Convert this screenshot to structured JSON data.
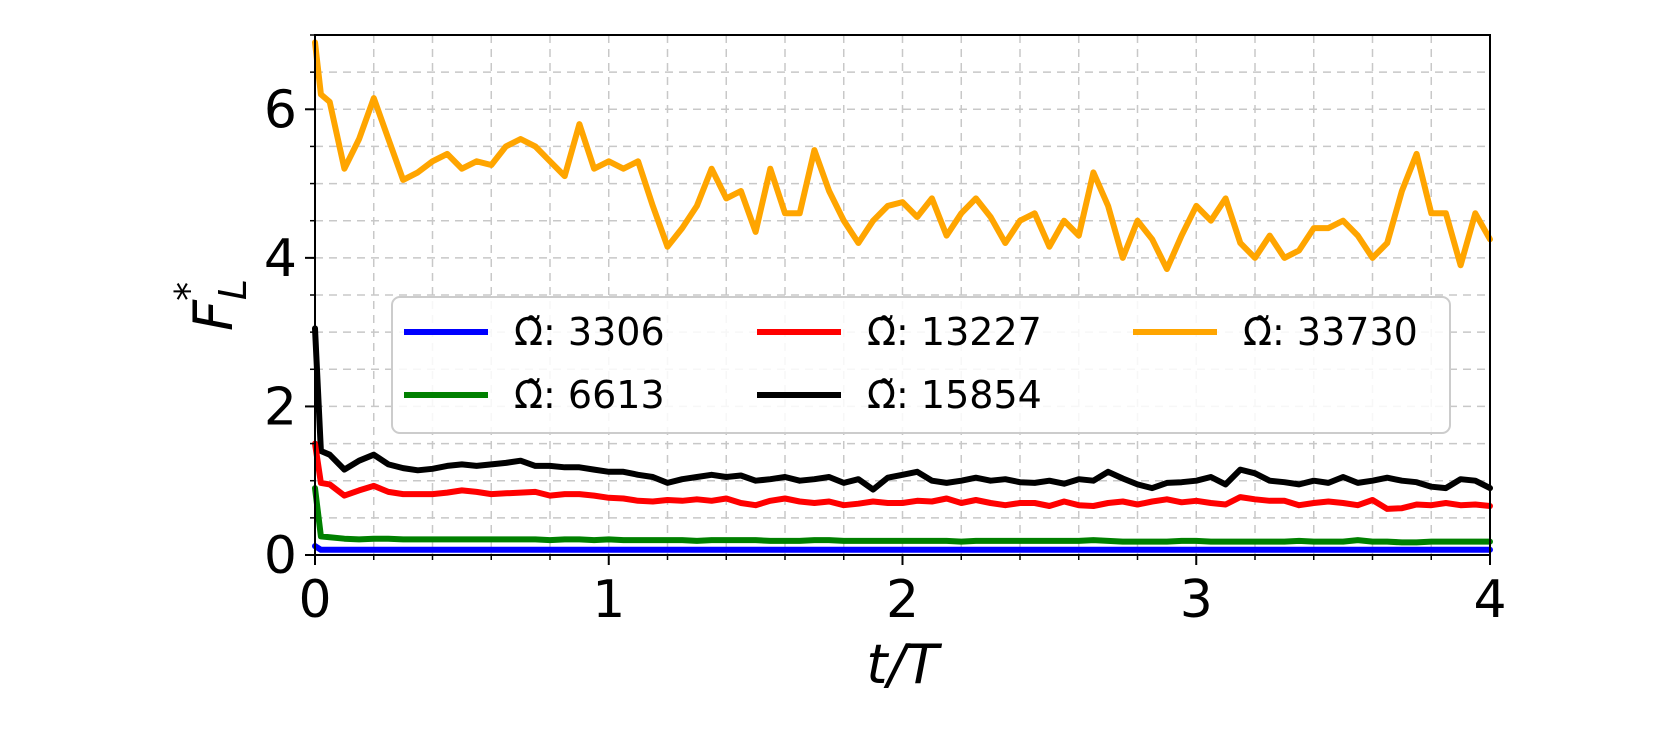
{
  "chart_data": {
    "type": "line",
    "xlabel": "t/T",
    "ylabel": "F*_L",
    "ylabel_main": "F",
    "ylabel_sup": "*",
    "ylabel_sub": "L",
    "xlim": [
      0,
      4
    ],
    "ylim": [
      0,
      7
    ],
    "x_ticks": [
      0,
      1,
      2,
      3,
      4
    ],
    "x_tick_labels": [
      "0",
      "1",
      "2",
      "3",
      "4"
    ],
    "y_ticks": [
      0,
      2,
      4,
      6
    ],
    "y_tick_labels": [
      "0",
      "2",
      "4",
      "6"
    ],
    "grid": true,
    "grid_minor": true,
    "legend_placement": "center",
    "legend_columns": 3,
    "x": [
      0.0,
      0.02,
      0.05,
      0.1,
      0.15,
      0.2,
      0.25,
      0.3,
      0.35,
      0.4,
      0.45,
      0.5,
      0.55,
      0.6,
      0.65,
      0.7,
      0.75,
      0.8,
      0.85,
      0.9,
      0.95,
      1.0,
      1.05,
      1.1,
      1.15,
      1.2,
      1.25,
      1.3,
      1.35,
      1.4,
      1.45,
      1.5,
      1.55,
      1.6,
      1.65,
      1.7,
      1.75,
      1.8,
      1.85,
      1.9,
      1.95,
      2.0,
      2.05,
      2.1,
      2.15,
      2.2,
      2.25,
      2.3,
      2.35,
      2.4,
      2.45,
      2.5,
      2.55,
      2.6,
      2.65,
      2.7,
      2.75,
      2.8,
      2.85,
      2.9,
      2.95,
      3.0,
      3.05,
      3.1,
      3.15,
      3.2,
      3.25,
      3.3,
      3.35,
      3.4,
      3.45,
      3.5,
      3.55,
      3.6,
      3.65,
      3.7,
      3.75,
      3.8,
      3.85,
      3.9,
      3.95,
      4.0
    ],
    "series": [
      {
        "name": "Ω̃: 3306",
        "color": "#0000ff",
        "values": [
          0.12,
          0.07,
          0.07,
          0.07,
          0.07,
          0.07,
          0.07,
          0.07,
          0.07,
          0.07,
          0.07,
          0.07,
          0.07,
          0.07,
          0.07,
          0.07,
          0.07,
          0.07,
          0.07,
          0.07,
          0.07,
          0.07,
          0.07,
          0.07,
          0.07,
          0.07,
          0.07,
          0.07,
          0.07,
          0.07,
          0.07,
          0.07,
          0.07,
          0.07,
          0.07,
          0.07,
          0.07,
          0.07,
          0.07,
          0.07,
          0.07,
          0.07,
          0.07,
          0.07,
          0.07,
          0.07,
          0.07,
          0.07,
          0.07,
          0.07,
          0.07,
          0.07,
          0.07,
          0.07,
          0.07,
          0.07,
          0.07,
          0.07,
          0.07,
          0.07,
          0.07,
          0.07,
          0.07,
          0.07,
          0.07,
          0.07,
          0.07,
          0.07,
          0.07,
          0.07,
          0.07,
          0.07,
          0.07,
          0.07,
          0.07,
          0.07,
          0.07,
          0.07,
          0.07,
          0.07,
          0.07,
          0.07
        ]
      },
      {
        "name": "Ω̃: 6613",
        "color": "#008000",
        "values": [
          0.9,
          0.25,
          0.24,
          0.22,
          0.21,
          0.22,
          0.22,
          0.21,
          0.21,
          0.21,
          0.21,
          0.21,
          0.21,
          0.21,
          0.21,
          0.21,
          0.21,
          0.2,
          0.21,
          0.21,
          0.2,
          0.21,
          0.2,
          0.2,
          0.2,
          0.2,
          0.2,
          0.19,
          0.2,
          0.2,
          0.2,
          0.2,
          0.19,
          0.19,
          0.19,
          0.2,
          0.2,
          0.19,
          0.19,
          0.19,
          0.19,
          0.19,
          0.19,
          0.19,
          0.19,
          0.18,
          0.19,
          0.19,
          0.19,
          0.19,
          0.19,
          0.19,
          0.19,
          0.19,
          0.2,
          0.19,
          0.18,
          0.18,
          0.18,
          0.18,
          0.19,
          0.19,
          0.18,
          0.18,
          0.18,
          0.18,
          0.18,
          0.18,
          0.19,
          0.18,
          0.18,
          0.18,
          0.2,
          0.18,
          0.18,
          0.17,
          0.17,
          0.18,
          0.18,
          0.18,
          0.18,
          0.18
        ]
      },
      {
        "name": "Ω̃: 13227",
        "color": "#ff0000",
        "values": [
          1.5,
          0.97,
          0.95,
          0.8,
          0.87,
          0.93,
          0.85,
          0.82,
          0.82,
          0.82,
          0.84,
          0.87,
          0.85,
          0.82,
          0.83,
          0.84,
          0.85,
          0.8,
          0.82,
          0.82,
          0.8,
          0.77,
          0.76,
          0.73,
          0.72,
          0.74,
          0.73,
          0.75,
          0.73,
          0.76,
          0.7,
          0.67,
          0.73,
          0.76,
          0.72,
          0.7,
          0.72,
          0.67,
          0.69,
          0.72,
          0.7,
          0.7,
          0.73,
          0.72,
          0.76,
          0.7,
          0.74,
          0.7,
          0.67,
          0.7,
          0.7,
          0.66,
          0.72,
          0.67,
          0.66,
          0.7,
          0.72,
          0.68,
          0.72,
          0.75,
          0.71,
          0.73,
          0.7,
          0.68,
          0.78,
          0.75,
          0.73,
          0.73,
          0.67,
          0.7,
          0.72,
          0.7,
          0.67,
          0.74,
          0.62,
          0.63,
          0.68,
          0.67,
          0.7,
          0.67,
          0.68,
          0.66
        ]
      },
      {
        "name": "Ω̃: 15854",
        "color": "#000000",
        "values": [
          3.05,
          1.4,
          1.35,
          1.15,
          1.27,
          1.35,
          1.22,
          1.17,
          1.14,
          1.16,
          1.2,
          1.22,
          1.2,
          1.22,
          1.24,
          1.27,
          1.2,
          1.2,
          1.18,
          1.18,
          1.15,
          1.12,
          1.12,
          1.08,
          1.05,
          0.97,
          1.02,
          1.05,
          1.08,
          1.05,
          1.07,
          1.0,
          1.02,
          1.05,
          1.0,
          1.02,
          1.05,
          0.97,
          1.02,
          0.88,
          1.04,
          1.08,
          1.12,
          1.0,
          0.97,
          1.0,
          1.04,
          1.0,
          1.02,
          0.98,
          0.97,
          1.0,
          0.96,
          1.02,
          1.0,
          1.12,
          1.03,
          0.95,
          0.9,
          0.97,
          0.98,
          1.0,
          1.05,
          0.95,
          1.15,
          1.1,
          1.0,
          0.98,
          0.95,
          1.0,
          0.97,
          1.05,
          0.97,
          1.0,
          1.04,
          1.0,
          0.98,
          0.92,
          0.9,
          1.02,
          1.0,
          0.9
        ]
      },
      {
        "name": "Ω̃: 33730",
        "color": "#ffa500",
        "values": [
          6.9,
          6.2,
          6.1,
          5.2,
          5.6,
          6.15,
          5.6,
          5.05,
          5.15,
          5.3,
          5.4,
          5.2,
          5.3,
          5.25,
          5.5,
          5.6,
          5.5,
          5.3,
          5.1,
          5.8,
          5.2,
          5.3,
          5.2,
          5.3,
          4.7,
          4.15,
          4.4,
          4.7,
          5.2,
          4.8,
          4.9,
          4.35,
          5.2,
          4.6,
          4.6,
          5.45,
          4.9,
          4.5,
          4.2,
          4.5,
          4.7,
          4.75,
          4.55,
          4.8,
          4.3,
          4.6,
          4.8,
          4.55,
          4.2,
          4.5,
          4.6,
          4.15,
          4.5,
          4.3,
          5.15,
          4.7,
          4.0,
          4.5,
          4.25,
          3.85,
          4.3,
          4.7,
          4.5,
          4.8,
          4.2,
          4.0,
          4.3,
          4.0,
          4.1,
          4.4,
          4.4,
          4.5,
          4.3,
          4.0,
          4.2,
          4.9,
          5.4,
          4.6,
          4.6,
          3.9,
          4.6,
          4.25
        ]
      }
    ]
  }
}
